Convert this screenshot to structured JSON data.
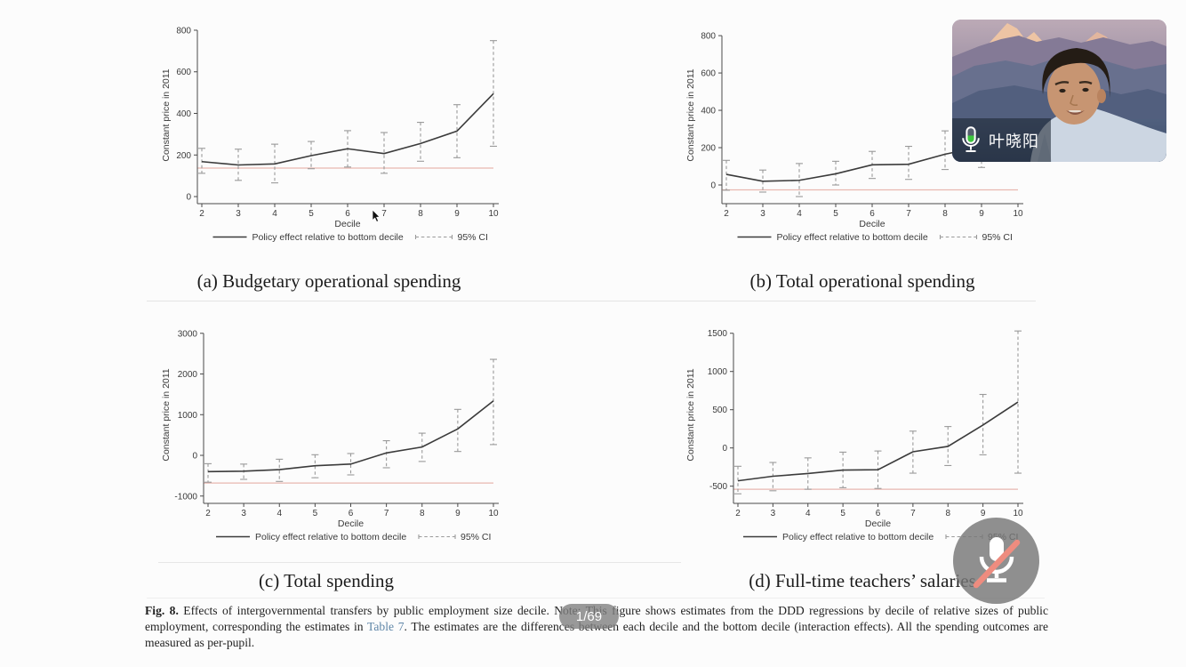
{
  "screen_share": {
    "figure_caption": {
      "label": "Fig. 8.",
      "before_link": " Effects of intergovernmental transfers by public employment size decile. Note: This figure shows estimates from the DDD regressions by decile of relative sizes of public employment, corresponding the estimates in ",
      "link_text": "Table 7",
      "after_link": ". The estimates are the differences between each decile and the bottom decile (interaction effects). All the spending outcomes are measured as per-pupil."
    }
  },
  "video_call": {
    "participant_name": "叶晓阳",
    "participant_mic_icon": "microphone-active-icon",
    "mute_button_icon": "microphone-muted-icon",
    "page_indicator": "1/69"
  },
  "colors": {
    "reference_line": "#e8b7b0",
    "data_line": "#3b3b3b",
    "ci_whisker": "#9a9a9a",
    "axis": "#4a4a4a",
    "link": "#5f86a8",
    "mic_level_green": "#3ec63e",
    "mute_slash": "#ee8c7f",
    "indicator_pill": "rgba(128,128,128,0.8)"
  },
  "chart_data": [
    {
      "type": "line",
      "panel": "(a) Budgetary operational spending",
      "x": [
        2,
        3,
        4,
        5,
        6,
        7,
        8,
        9,
        10
      ],
      "xlabel": "Decile",
      "ylabel": "Constant price in 2011",
      "yticks": [
        0,
        200,
        400,
        600,
        800
      ],
      "ylim": [
        -34,
        817
      ],
      "grid": false,
      "legend_position": "bottom",
      "series": [
        {
          "name": "Policy effect relative to bottom decile",
          "values": [
            168,
            152,
            157,
            197,
            230,
            207,
            255,
            315,
            495
          ]
        }
      ],
      "ci_label": "95% CI",
      "ci_low": [
        112,
        78,
        66,
        134,
        142,
        112,
        170,
        187,
        242
      ],
      "ci_high": [
        232,
        228,
        252,
        265,
        317,
        308,
        357,
        442,
        750
      ],
      "ref_line": 137
    },
    {
      "type": "line",
      "panel": "(b) Total operational spending",
      "x": [
        2,
        3,
        4,
        5,
        6,
        7,
        8,
        9,
        10
      ],
      "xlabel": "Decile",
      "ylabel": "Constant price in 2011",
      "yticks": [
        0,
        200,
        400,
        600,
        800
      ],
      "ylim": [
        -100,
        848
      ],
      "grid": false,
      "legend_position": "bottom",
      "series": [
        {
          "name": "Policy effect relative to bottom decile",
          "values": [
            57,
            20,
            25,
            60,
            108,
            111,
            165,
            205,
            310
          ]
        }
      ],
      "ci_label": "95% CI",
      "ci_low": [
        -28,
        -38,
        -62,
        0,
        35,
        30,
        83,
        94,
        130
      ],
      "ci_high": [
        132,
        80,
        115,
        127,
        180,
        207,
        290,
        400,
        540
      ],
      "ref_line": -26,
      "visibility_note": "deciles 9-10 partially hidden behind webcam overlay"
    },
    {
      "type": "line",
      "panel": "(c) Total spending",
      "x": [
        2,
        3,
        4,
        5,
        6,
        7,
        8,
        9,
        10
      ],
      "xlabel": "Decile",
      "ylabel": "Constant price in 2011",
      "yticks": [
        -1000,
        0,
        1000,
        2000,
        3000
      ],
      "ylim": [
        -1180,
        3170
      ],
      "grid": false,
      "legend_position": "bottom",
      "series": [
        {
          "name": "Policy effect relative to bottom decile",
          "values": [
            -400,
            -390,
            -350,
            -255,
            -215,
            60,
            205,
            650,
            1340
          ]
        }
      ],
      "ci_label": "95% CI",
      "ci_low": [
        -660,
        -590,
        -640,
        -550,
        -480,
        -305,
        -150,
        95,
        265
      ],
      "ci_high": [
        -205,
        -215,
        -95,
        15,
        45,
        360,
        545,
        1130,
        2360
      ],
      "ref_line": -680
    },
    {
      "type": "line",
      "panel": "(d) Full-time teachers’ salaries",
      "x": [
        2,
        3,
        4,
        5,
        6,
        7,
        8,
        9,
        10
      ],
      "xlabel": "Decile",
      "ylabel": "Constant price in 2011",
      "yticks": [
        -500,
        0,
        500,
        1000,
        1500
      ],
      "ylim": [
        -725,
        1590
      ],
      "grid": false,
      "legend_position": "bottom",
      "series": [
        {
          "name": "Policy effect relative to bottom decile",
          "values": [
            -430,
            -370,
            -335,
            -290,
            -285,
            -50,
            20,
            300,
            600
          ]
        }
      ],
      "ci_label": "95% CI",
      "ci_low": [
        -600,
        -560,
        -540,
        -520,
        -530,
        -330,
        -230,
        -90,
        -330
      ],
      "ci_high": [
        -240,
        -190,
        -130,
        -55,
        -40,
        220,
        280,
        700,
        1530
      ],
      "ref_line": -540
    }
  ]
}
